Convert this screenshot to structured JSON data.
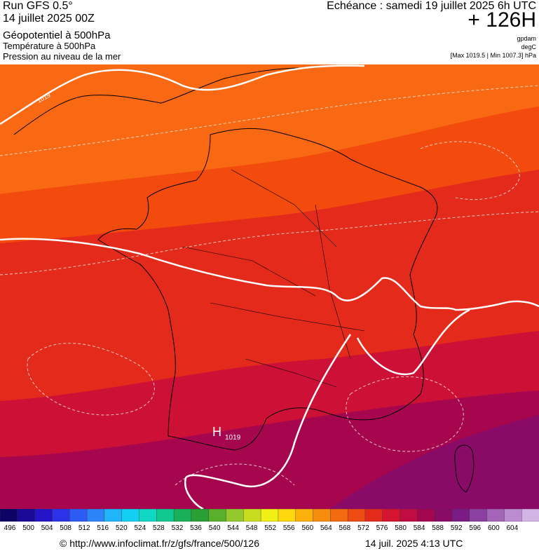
{
  "header": {
    "run": "Run GFS 0.5°",
    "run_date": "14 juillet 2025 00Z",
    "field1": "Géopotentiel à 500hPa",
    "field2": "Température à 500hPa",
    "field3": "Pression au niveau de la mer",
    "echeance": "Echéance : samedi 19 juillet 2025 6h UTC",
    "lead": "+ 126H",
    "unit1": "gpdam",
    "unit2": "degC",
    "range": "[Max 1019.5 | Min 1007.3] hPa"
  },
  "map": {
    "isobar_label_top": "1019",
    "high_letter": "H",
    "high_value": "1019",
    "colors": {
      "sea_background": "#e42a1b",
      "north_band": "#f34a0e",
      "far_north": "#f96813",
      "south_band": "#cd1136",
      "far_south": "#a5064e",
      "south_east": "#8a0a67",
      "isobar": "#ffffff",
      "coast": "#000000"
    }
  },
  "scale": {
    "labels": [
      "496",
      "500",
      "504",
      "508",
      "512",
      "516",
      "520",
      "524",
      "528",
      "532",
      "536",
      "540",
      "544",
      "548",
      "552",
      "556",
      "560",
      "564",
      "568",
      "572",
      "576",
      "580",
      "584",
      "588",
      "592",
      "596",
      "600",
      "604"
    ],
    "colors": [
      "#0c0464",
      "#1a0896",
      "#2414c8",
      "#2c32e8",
      "#2c5cf4",
      "#2c84f8",
      "#20b4f8",
      "#14d0f0",
      "#10d8c4",
      "#10c890",
      "#18b058",
      "#28a034",
      "#58b02c",
      "#94c82c",
      "#c8dc20",
      "#f0f014",
      "#fcd80c",
      "#fcb00c",
      "#f88c0c",
      "#f46a10",
      "#ee4c12",
      "#e42a1b",
      "#d41430",
      "#c00c40",
      "#a40650",
      "#8a0a67",
      "#7a1c84",
      "#8c40a0",
      "#a464b8",
      "#bc8cd0",
      "#d4b4e4"
    ]
  },
  "footer": {
    "url": "© http://www.infoclimat.fr/z/gfs/france/500/126",
    "timestamp": "14 juil. 2025  4:13 UTC"
  }
}
